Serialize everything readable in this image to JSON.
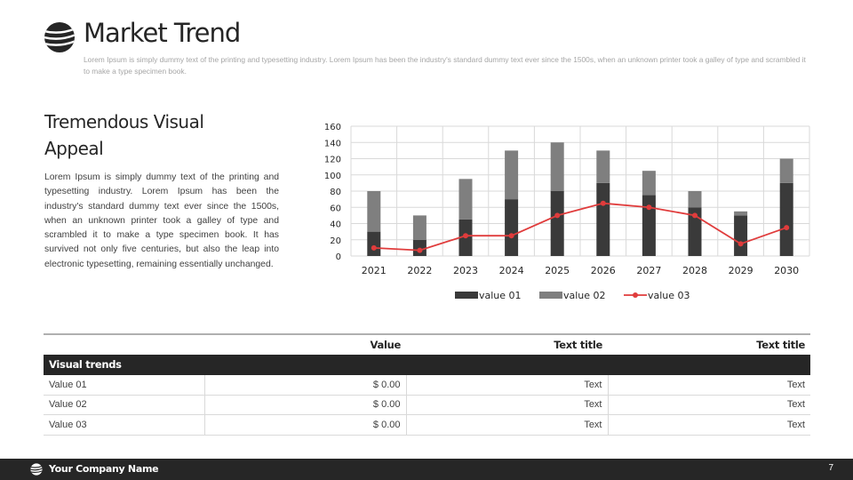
{
  "header": {
    "title": "Market Trend",
    "subtitle": "Lorem Ipsum is simply dummy text of the printing and typesetting industry. Lorem Ipsum has been the industry's standard dummy text ever since the 1500s, when an unknown printer took a galley of type and scrambled it to make a type specimen book.",
    "logo_icon": "striped-globe-icon"
  },
  "section": {
    "heading": "Tremendous Visual Appeal",
    "body": "Lorem Ipsum is simply dummy text of the printing and typesetting industry. Lorem Ipsum has been the industry's standard dummy text ever since the 1500s, when an unknown printer took a galley of type and scrambled it to make a type specimen book. It has survived not only five centuries, but also the leap into electronic typesetting, remaining essentially unchanged."
  },
  "chart_data": {
    "type": "bar",
    "stacked": true,
    "categories": [
      "2021",
      "2022",
      "2023",
      "2024",
      "2025",
      "2026",
      "2027",
      "2028",
      "2029",
      "2030"
    ],
    "series": [
      {
        "name": "value 01",
        "kind": "bar",
        "color": "#3a3a3a",
        "values": [
          30,
          20,
          45,
          70,
          80,
          90,
          75,
          60,
          50,
          90
        ]
      },
      {
        "name": "value 02",
        "kind": "bar",
        "color": "#7f7f7f",
        "values": [
          50,
          30,
          50,
          60,
          60,
          40,
          30,
          20,
          5,
          30
        ]
      },
      {
        "name": "value 03",
        "kind": "line",
        "color": "#e03c3c",
        "values": [
          10,
          7,
          25,
          25,
          50,
          65,
          60,
          50,
          15,
          35
        ]
      }
    ],
    "ylim": [
      0,
      160
    ],
    "yticks": [
      0,
      20,
      40,
      60,
      80,
      100,
      120,
      140,
      160
    ],
    "grid": true,
    "legend": "bottom"
  },
  "table": {
    "headers": [
      "",
      "Value",
      "Text title",
      "Text title"
    ],
    "group_label": "Visual trends",
    "rows": [
      {
        "label": "Value 01",
        "value": "$ 0.00",
        "col2": "Text",
        "col3": "Text"
      },
      {
        "label": "Value 02",
        "value": "$ 0.00",
        "col2": "Text",
        "col3": "Text"
      },
      {
        "label": "Value 03",
        "value": "$ 0.00",
        "col2": "Text",
        "col3": "Text"
      }
    ]
  },
  "footer": {
    "company": "Your Company Name",
    "page": "7",
    "icon": "striped-globe-icon"
  }
}
